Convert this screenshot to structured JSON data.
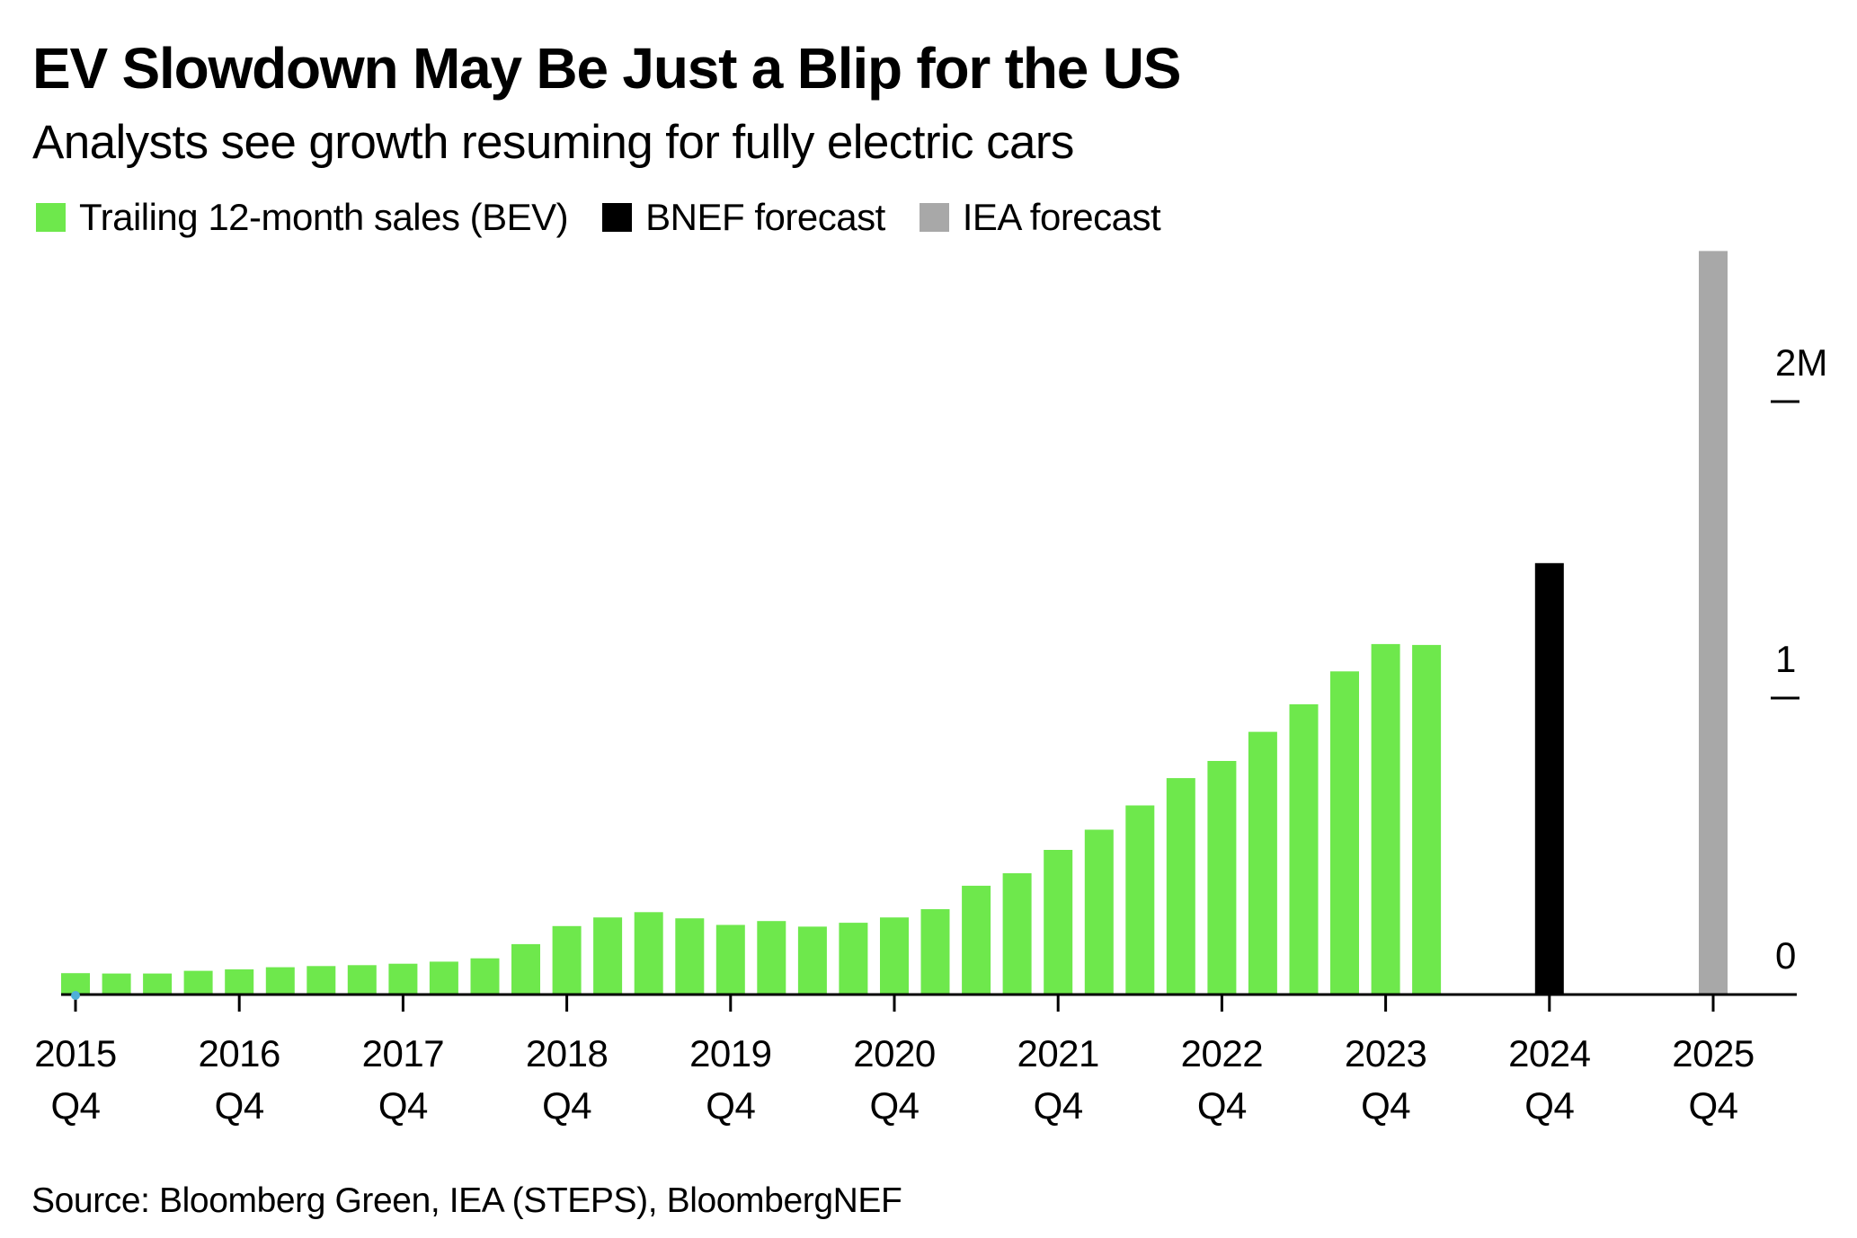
{
  "title": "EV Slowdown May Be Just a Blip for the US",
  "subtitle": "Analysts see growth resuming for fully electric cars",
  "legend": [
    {
      "label": "Trailing 12-month sales (BEV)",
      "color": "#6ee84c"
    },
    {
      "label": "BNEF forecast",
      "color": "#000000"
    },
    {
      "label": "IEA forecast",
      "color": "#a8a8a8"
    }
  ],
  "source": "Source: Bloomberg Green, IEA (STEPS), BloombergNEF",
  "chart_data": {
    "type": "bar",
    "title": "EV Slowdown May Be Just a Blip for the US",
    "subtitle": "Analysts see growth resuming for fully electric cars",
    "xlabel": "",
    "ylabel": "",
    "unit": "million vehicles",
    "ylim": [
      0,
      2.5
    ],
    "y_ticks": [
      {
        "value": 0,
        "label": "0"
      },
      {
        "value": 1,
        "label": "1"
      },
      {
        "value": 2,
        "label": "2M"
      }
    ],
    "x_ticks": [
      {
        "quarter": "2015 Q4",
        "year": "2015",
        "q": "Q4"
      },
      {
        "quarter": "2016 Q4",
        "year": "2016",
        "q": "Q4"
      },
      {
        "quarter": "2017 Q4",
        "year": "2017",
        "q": "Q4"
      },
      {
        "quarter": "2018 Q4",
        "year": "2018",
        "q": "Q4"
      },
      {
        "quarter": "2019 Q4",
        "year": "2019",
        "q": "Q4"
      },
      {
        "quarter": "2020 Q4",
        "year": "2020",
        "q": "Q4"
      },
      {
        "quarter": "2021 Q4",
        "year": "2021",
        "q": "Q4"
      },
      {
        "quarter": "2022 Q4",
        "year": "2022",
        "q": "Q4"
      },
      {
        "quarter": "2023 Q4",
        "year": "2023",
        "q": "Q4"
      },
      {
        "quarter": "2024 Q4",
        "year": "2024",
        "q": "Q4"
      },
      {
        "quarter": "2025 Q4",
        "year": "2025",
        "q": "Q4"
      }
    ],
    "y_axis_position": "right",
    "grid": false,
    "legend_position": "top-left",
    "series": [
      {
        "name": "Trailing 12-month sales (BEV)",
        "color": "#6ee84c",
        "points": [
          {
            "quarter": "2015 Q4",
            "value": 0.072
          },
          {
            "quarter": "2016 Q1",
            "value": 0.071
          },
          {
            "quarter": "2016 Q2",
            "value": 0.071
          },
          {
            "quarter": "2016 Q3",
            "value": 0.08
          },
          {
            "quarter": "2016 Q4",
            "value": 0.085
          },
          {
            "quarter": "2017 Q1",
            "value": 0.092
          },
          {
            "quarter": "2017 Q2",
            "value": 0.096
          },
          {
            "quarter": "2017 Q3",
            "value": 0.099
          },
          {
            "quarter": "2017 Q4",
            "value": 0.104
          },
          {
            "quarter": "2018 Q1",
            "value": 0.111
          },
          {
            "quarter": "2018 Q2",
            "value": 0.122
          },
          {
            "quarter": "2018 Q3",
            "value": 0.17
          },
          {
            "quarter": "2018 Q4",
            "value": 0.231
          },
          {
            "quarter": "2019 Q1",
            "value": 0.26
          },
          {
            "quarter": "2019 Q2",
            "value": 0.278
          },
          {
            "quarter": "2019 Q3",
            "value": 0.257
          },
          {
            "quarter": "2019 Q4",
            "value": 0.235
          },
          {
            "quarter": "2020 Q1",
            "value": 0.248
          },
          {
            "quarter": "2020 Q2",
            "value": 0.229
          },
          {
            "quarter": "2020 Q3",
            "value": 0.242
          },
          {
            "quarter": "2020 Q4",
            "value": 0.26
          },
          {
            "quarter": "2021 Q1",
            "value": 0.288
          },
          {
            "quarter": "2021 Q2",
            "value": 0.367
          },
          {
            "quarter": "2021 Q3",
            "value": 0.409
          },
          {
            "quarter": "2021 Q4",
            "value": 0.488
          },
          {
            "quarter": "2022 Q1",
            "value": 0.556
          },
          {
            "quarter": "2022 Q2",
            "value": 0.638
          },
          {
            "quarter": "2022 Q3",
            "value": 0.73
          },
          {
            "quarter": "2022 Q4",
            "value": 0.788
          },
          {
            "quarter": "2023 Q1",
            "value": 0.886
          },
          {
            "quarter": "2023 Q2",
            "value": 0.979
          },
          {
            "quarter": "2023 Q3",
            "value": 1.09
          },
          {
            "quarter": "2023 Q4",
            "value": 1.182
          },
          {
            "quarter": "2024 Q1",
            "value": 1.179
          }
        ]
      },
      {
        "name": "BNEF forecast",
        "color": "#000000",
        "points": [
          {
            "quarter": "2024 Q4",
            "value": 1.455
          }
        ]
      },
      {
        "name": "IEA forecast",
        "color": "#a8a8a8",
        "points": [
          {
            "quarter": "2025 Q4",
            "value": 2.508
          }
        ]
      }
    ],
    "marker": {
      "quarter": "2015 Q4",
      "value": 0,
      "color": "#4fb0d8"
    }
  }
}
